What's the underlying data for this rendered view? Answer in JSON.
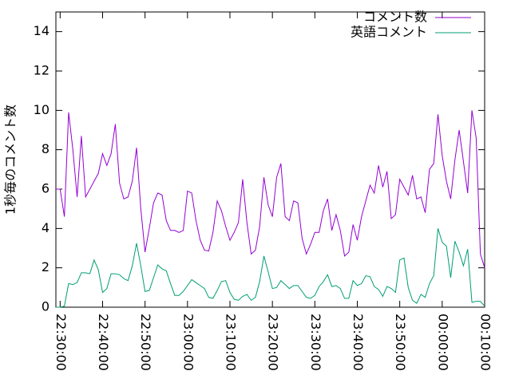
{
  "chart_data": {
    "type": "line",
    "y_label": "1秒毎のコメント数",
    "x": [
      1349,
      1350,
      1351,
      1352,
      1353,
      1354,
      1355,
      1356,
      1357,
      1358,
      1359,
      1360,
      1361,
      1362,
      1363,
      1364,
      1365,
      1366,
      1367,
      1368,
      1369,
      1370,
      1371,
      1372,
      1373,
      1374,
      1375,
      1376,
      1377,
      1378,
      1379,
      1380,
      1381,
      1382,
      1383,
      1384,
      1385,
      1386,
      1387,
      1388,
      1389,
      1390,
      1391,
      1392,
      1393,
      1394,
      1395,
      1396,
      1397,
      1398,
      1399,
      1400,
      1401,
      1402,
      1403,
      1404,
      1405,
      1406,
      1407,
      1408,
      1409,
      1410,
      1411,
      1412,
      1413,
      1414,
      1415,
      1416,
      1417,
      1418,
      1419,
      1420,
      1421,
      1422,
      1423,
      1424,
      1425,
      1426,
      1427,
      1428,
      1429,
      1430,
      1431,
      1432,
      1433,
      1434,
      1435,
      1436,
      1437,
      1438,
      1439,
      1440,
      1441,
      1442,
      1443,
      1444,
      1445,
      1446,
      1447,
      1448,
      1449,
      1450
    ],
    "series": [
      {
        "name": "コメント数",
        "color": "#9400d3",
        "values": [
          6,
          6,
          4.6,
          9.9,
          8,
          5.6,
          8.7,
          5.6,
          6,
          6.4,
          6.8,
          7.8,
          7.2,
          7.8,
          9.3,
          6.3,
          5.5,
          5.6,
          6.4,
          8.1,
          5,
          2.8,
          4,
          5.3,
          5.8,
          5.7,
          4.4,
          3.9,
          3.9,
          3.8,
          3.9,
          5.9,
          5.8,
          4.4,
          3.4,
          2.9,
          2.85,
          3.8,
          5.4,
          4.9,
          4.1,
          3.4,
          3.8,
          4.3,
          6.5,
          4.3,
          2.7,
          2.9,
          4.1,
          6.6,
          5.2,
          4.6,
          6.6,
          7.3,
          4.6,
          4.4,
          5.4,
          5.3,
          3.5,
          2.7,
          3.2,
          3.8,
          3.8,
          4.9,
          5.5,
          3.9,
          4.7,
          3.9,
          2.6,
          2.8,
          4.2,
          3.4,
          4.6,
          5.4,
          6.2,
          5.8,
          7.2,
          6.1,
          6.9,
          4.5,
          4.7,
          6.5,
          6.1,
          5.7,
          6.7,
          5.5,
          5.6,
          4.8,
          7,
          7.3,
          9.8,
          7.7,
          6.4,
          5.5,
          7.5,
          9,
          7.4,
          5.8,
          10,
          8.6,
          2.7,
          2
        ]
      },
      {
        "name": "英語コメント",
        "color": "#009e73",
        "values": [
          0,
          0,
          0.05,
          1.2,
          1.15,
          1.25,
          1.75,
          1.75,
          1.7,
          2.4,
          1.9,
          0.75,
          0.95,
          1.7,
          1.7,
          1.65,
          1.45,
          1.35,
          2.1,
          3.25,
          2.1,
          0.8,
          0.85,
          1.5,
          2.15,
          1.95,
          1.85,
          1.2,
          0.6,
          0.6,
          0.8,
          1.1,
          1.4,
          1.25,
          1.1,
          0.95,
          0.5,
          0.45,
          0.85,
          1.3,
          1.35,
          0.75,
          0.4,
          0.35,
          0.55,
          0.65,
          0.35,
          0.5,
          1.3,
          2.6,
          1.8,
          0.95,
          1,
          1.35,
          1.15,
          0.95,
          1.1,
          1.1,
          0.8,
          0.5,
          0.45,
          0.6,
          1.05,
          1.3,
          1.65,
          1.05,
          1.1,
          0.95,
          0.45,
          0.45,
          1.35,
          1.1,
          1.2,
          1.6,
          1.55,
          1.05,
          0.9,
          0.55,
          1.05,
          0.95,
          0.75,
          2.4,
          2.5,
          1,
          0.35,
          0.2,
          0.65,
          0.5,
          1.2,
          1.6,
          4,
          3.3,
          3.1,
          1.5,
          3.35,
          2.8,
          2.1,
          2.95,
          0.25,
          0.3,
          0.3,
          0.05
        ]
      }
    ],
    "xlim": [
      1349,
      1450
    ],
    "xticks": [
      {
        "value": 1350,
        "label": "22:30:00"
      },
      {
        "value": 1360,
        "label": "22:40:00"
      },
      {
        "value": 1370,
        "label": "22:50:00"
      },
      {
        "value": 1380,
        "label": "23:00:00"
      },
      {
        "value": 1390,
        "label": "23:10:00"
      },
      {
        "value": 1400,
        "label": "23:20:00"
      },
      {
        "value": 1410,
        "label": "23:30:00"
      },
      {
        "value": 1420,
        "label": "23:40:00"
      },
      {
        "value": 1430,
        "label": "23:50:00"
      },
      {
        "value": 1440,
        "label": "00:00:00"
      },
      {
        "value": 1450,
        "label": "00:10:00"
      }
    ],
    "ylim": [
      0,
      15
    ],
    "yticks": [
      0,
      2,
      4,
      6,
      8,
      10,
      12,
      14
    ],
    "legend": "top-right"
  }
}
